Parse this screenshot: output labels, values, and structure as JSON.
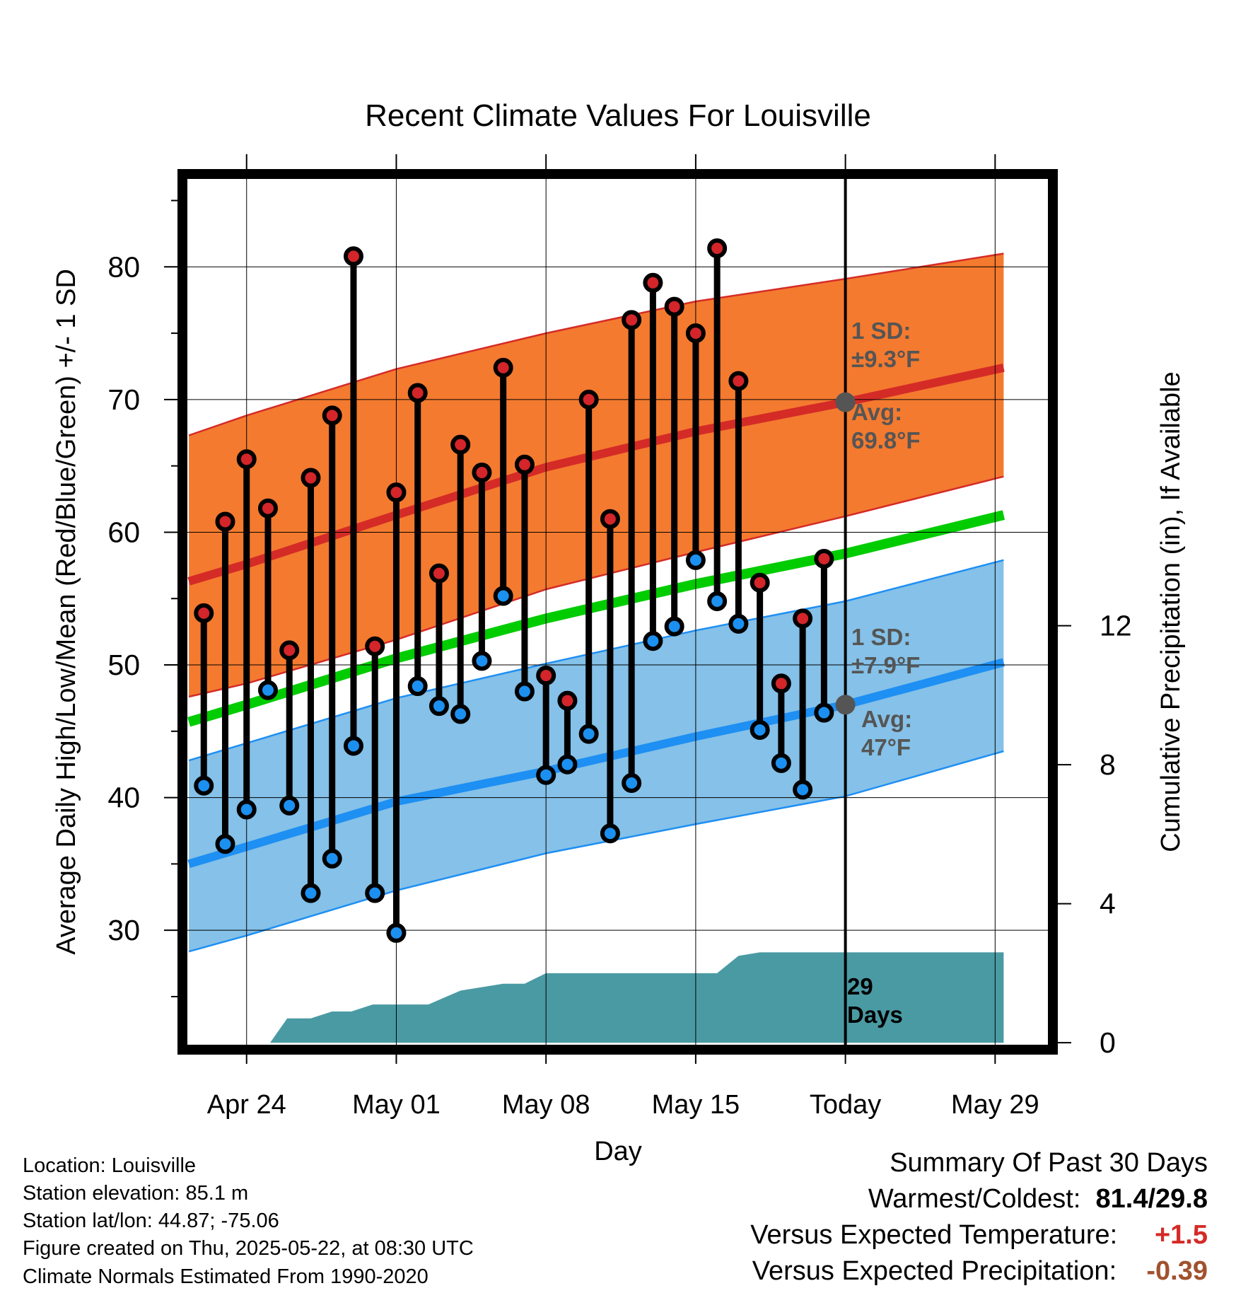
{
  "chart_data": {
    "type": "line",
    "title": "Recent Climate Values For Louisville",
    "xlabel": "Day",
    "ylabel_left": "Average Daily High/Low/Mean (Red/Blue/Green) +/- 1 SD",
    "ylabel_right": "Cumulative Precipitation (in), If Available",
    "x_tick_labels": [
      "Apr 24",
      "May 01",
      "May 08",
      "May 15",
      "Today",
      "May 29"
    ],
    "x_tick_days": [
      0,
      7,
      14,
      21,
      28,
      35
    ],
    "y_left_ticks": [
      30,
      40,
      50,
      60,
      70,
      80
    ],
    "y_left_range": [
      21,
      87
    ],
    "y_right_ticks": [
      0,
      4,
      8,
      12
    ],
    "y_right_range": [
      -0.2,
      25
    ],
    "x_range": [
      -3.0,
      37.7
    ],
    "today_day": 28,
    "high_normal": {
      "days": [
        -2.7,
        0,
        7,
        14,
        21,
        28,
        35.4
      ],
      "avg": [
        56.3,
        57.6,
        61.3,
        64.9,
        67.6,
        69.8,
        72.4
      ],
      "upper": [
        67.3,
        68.8,
        72.3,
        75.0,
        77.4,
        79.1,
        81.0
      ],
      "lower": [
        47.6,
        48.6,
        51.9,
        55.7,
        58.5,
        61.2,
        64.2
      ]
    },
    "low_normal": {
      "days": [
        -2.7,
        0,
        7,
        14,
        21,
        28,
        35.4
      ],
      "avg": [
        35.0,
        36.3,
        39.7,
        42.0,
        44.6,
        47.0,
        50.2
      ],
      "upper": [
        42.8,
        44.1,
        47.5,
        50.1,
        52.6,
        54.8,
        57.9
      ],
      "lower": [
        28.4,
        29.6,
        33.0,
        35.8,
        38.0,
        40.1,
        43.5
      ]
    },
    "mean_normal": {
      "days": [
        -2.7,
        0,
        7,
        14,
        21,
        28,
        35.4
      ],
      "values": [
        45.7,
        47.0,
        50.5,
        53.5,
        56.1,
        58.4,
        61.3
      ]
    },
    "series": [
      {
        "name": "Daily High",
        "days": [
          -2,
          -1,
          0,
          1,
          2,
          3,
          4,
          5,
          6,
          7,
          8,
          9,
          10,
          11,
          12,
          13,
          14,
          15,
          16,
          17,
          18,
          19,
          20,
          21,
          22,
          23,
          24,
          25,
          26,
          27
        ],
        "values": [
          53.9,
          60.8,
          65.5,
          61.8,
          51.1,
          64.1,
          68.8,
          80.8,
          51.4,
          63.0,
          70.5,
          56.9,
          66.6,
          64.5,
          72.4,
          65.1,
          49.2,
          47.3,
          70.0,
          61.0,
          76.0,
          78.8,
          77.0,
          75.0,
          81.4,
          71.4,
          56.2,
          48.6,
          53.5,
          58.0
        ]
      },
      {
        "name": "Daily Low",
        "days": [
          -2,
          -1,
          0,
          1,
          2,
          3,
          4,
          5,
          6,
          7,
          8,
          9,
          10,
          11,
          12,
          13,
          14,
          15,
          16,
          17,
          18,
          19,
          20,
          21,
          22,
          23,
          24,
          25,
          26,
          27
        ],
        "values": [
          40.9,
          36.5,
          39.1,
          48.1,
          39.4,
          32.8,
          35.4,
          43.9,
          32.8,
          29.8,
          48.4,
          46.9,
          46.3,
          50.3,
          55.2,
          48.0,
          41.7,
          42.5,
          44.8,
          37.3,
          41.1,
          51.8,
          52.9,
          57.9,
          54.8,
          53.1,
          45.1,
          42.6,
          40.6,
          46.4
        ]
      }
    ],
    "precipitation": {
      "name": "Cumulative Precipitation",
      "days": [
        -2.7,
        1.1,
        1.9,
        3.0,
        4.0,
        4.9,
        5.9,
        6.9,
        7.5,
        8.5,
        10.0,
        11.0,
        12.0,
        13.0,
        14.0,
        15.0,
        16.0,
        22.0,
        23.0,
        24.0,
        35.4
      ],
      "values": [
        0.0,
        0.0,
        0.7,
        0.7,
        0.9,
        0.9,
        1.1,
        1.1,
        1.1,
        1.1,
        1.5,
        1.6,
        1.7,
        1.7,
        2.0,
        2.0,
        2.0,
        2.0,
        2.5,
        2.6,
        2.6
      ]
    },
    "annotations": {
      "high_sd": [
        "1 SD:",
        "±9.3°F"
      ],
      "high_avg": [
        "Avg:",
        "69.8°F"
      ],
      "low_sd": [
        "1 SD:",
        "±7.9°F"
      ],
      "low_avg": [
        "Avg:",
        "47°F"
      ],
      "days": [
        "29",
        "Days"
      ]
    },
    "colors": {
      "high_band": "#f47a2f",
      "high_line": "#d42b27",
      "low_band": "#85c1e8",
      "low_line": "#1e8ff3",
      "mean_line": "#00cc00",
      "precip": "#4a9aa3",
      "high_marker": "#d3252a",
      "low_marker": "#1c90f0",
      "annotation": "#555555",
      "frame": "#000000"
    }
  },
  "info": {
    "location": "Location: Louisville",
    "elevation": "Station elevation: 85.1 m",
    "latlon": "Station lat/lon: 44.87; -75.06",
    "created": "Figure created on Thu, 2025-05-22, at 08:30 UTC",
    "normals": "Climate Normals Estimated From 1990-2020"
  },
  "summary": {
    "title": "Summary Of Past 30 Days",
    "warm_cold_label": "Warmest/Coldest:",
    "warm_cold_value": "81.4/29.8",
    "temp_label": "Versus Expected Temperature:",
    "temp_value": "+1.5",
    "temp_color": "#d42b27",
    "precip_label": "Versus Expected Precipitation:",
    "precip_value": "-0.39",
    "precip_color": "#a0522d"
  }
}
